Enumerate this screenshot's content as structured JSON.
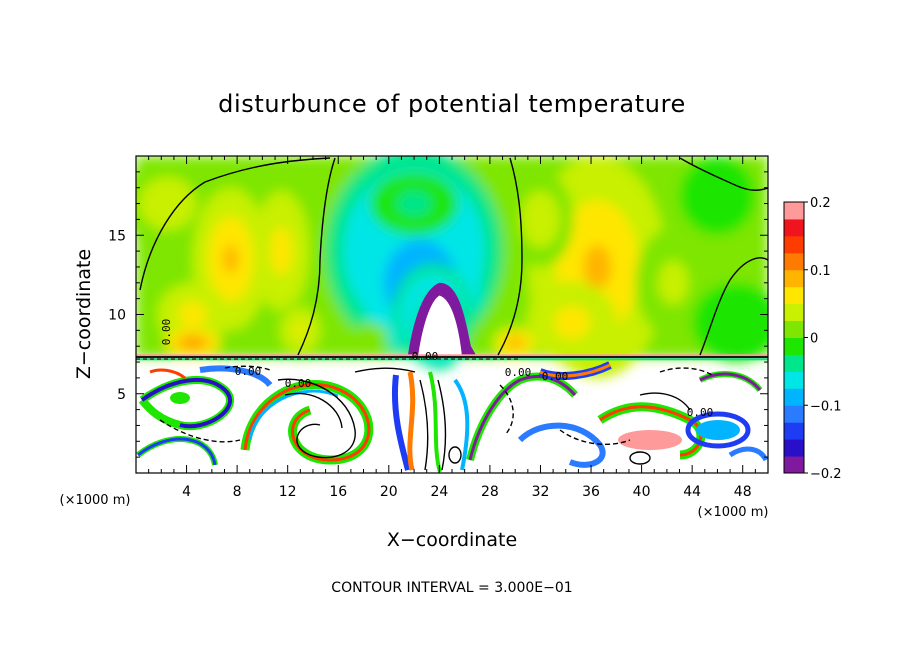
{
  "chart_data": {
    "type": "heatmap",
    "title": "disturbunce of potential temperature",
    "xlabel": "X−coordinate",
    "ylabel": "Z−coordinate",
    "x_unit_left": "(×1000 m)",
    "x_unit_right": "(×1000 m)",
    "xlim": [
      0,
      50
    ],
    "ylim": [
      0,
      20
    ],
    "x_ticks": [
      4,
      8,
      12,
      16,
      20,
      24,
      28,
      32,
      36,
      40,
      44,
      48
    ],
    "x_tick_labels": [
      "4",
      "8",
      "12",
      "16",
      "20",
      "24",
      "28",
      "32",
      "36",
      "40",
      "44",
      "48"
    ],
    "y_ticks": [
      5,
      10,
      15
    ],
    "y_tick_labels": [
      "5",
      "10",
      "15"
    ],
    "colorbar": {
      "range": [
        -0.2,
        0.2
      ],
      "ticks": [
        0.2,
        0.1,
        0,
        -0.1,
        -0.2
      ],
      "tick_labels": [
        "0.2",
        "0.1",
        "0",
        "−0.1",
        "−0.2"
      ],
      "colors": [
        "#7f1a9e",
        "#2a0fc8",
        "#1f3cf5",
        "#2a7bff",
        "#00b4ff",
        "#00e6e6",
        "#00e68a",
        "#1ee600",
        "#7ee600",
        "#c8f000",
        "#ffe600",
        "#ffb400",
        "#ff7a00",
        "#ff3c00",
        "#f0141e",
        "#ff9a9a"
      ]
    },
    "contour_labels": [
      "0.00",
      "0.00",
      "0.00",
      "0.00",
      "0.00",
      "0.00",
      "0.00"
    ],
    "contour_interval_text": "CONTOUR INTERVAL =  3.000E−01",
    "blobs": [
      {
        "x": 2.5,
        "z": 17.0,
        "rx": 3.8,
        "rz": 2.8,
        "v": 0.035
      },
      {
        "x": 7.5,
        "z": 13.5,
        "rx": 3.0,
        "rz": 4.5,
        "v": 0.075
      },
      {
        "x": 4.5,
        "z": 10.0,
        "rx": 2.8,
        "rz": 2.0,
        "v": 0.065
      },
      {
        "x": 4.5,
        "z": 8.2,
        "rx": 2.2,
        "rz": 0.9,
        "v": 0.11
      },
      {
        "x": 11.5,
        "z": 14.0,
        "rx": 2.2,
        "rz": 3.8,
        "v": 0.06
      },
      {
        "x": 13.0,
        "z": 9.0,
        "rx": 2.0,
        "rz": 1.8,
        "v": 0.05
      },
      {
        "x": 22.0,
        "z": 14.0,
        "rx": 7.0,
        "rz": 6.5,
        "v": -0.09
      },
      {
        "x": 22.5,
        "z": 12.0,
        "rx": 4.8,
        "rz": 4.5,
        "v": -0.11
      },
      {
        "x": 23.5,
        "z": 10.0,
        "rx": 3.2,
        "rz": 3.2,
        "v": -0.1
      },
      {
        "x": 24.0,
        "z": 9.0,
        "rx": 2.2,
        "rz": 2.5,
        "v": -0.1
      },
      {
        "x": 22.0,
        "z": 17.0,
        "rx": 3.5,
        "rz": 2.0,
        "v": -0.03
      },
      {
        "x": 36.5,
        "z": 13.0,
        "rx": 5.5,
        "rz": 7.0,
        "v": 0.075
      },
      {
        "x": 34.5,
        "z": 9.5,
        "rx": 3.6,
        "rz": 2.6,
        "v": 0.06
      },
      {
        "x": 32.0,
        "z": 16.0,
        "rx": 2.6,
        "rz": 3.0,
        "v": 0.04
      },
      {
        "x": 42.5,
        "z": 12.0,
        "rx": 3.0,
        "rz": 3.5,
        "v": 0.03
      },
      {
        "x": 47.5,
        "z": 9.5,
        "rx": 3.5,
        "rz": 2.5,
        "v": -0.015
      },
      {
        "x": 46.0,
        "z": 17.5,
        "rx": 3.0,
        "rz": 2.5,
        "v": -0.02
      },
      {
        "x": 30.0,
        "z": 8.2,
        "rx": 1.8,
        "rz": 1.0,
        "v": 0.09
      },
      {
        "x": 18.5,
        "z": 8.5,
        "rx": 1.5,
        "rz": 1.0,
        "v": 0.02
      }
    ]
  }
}
